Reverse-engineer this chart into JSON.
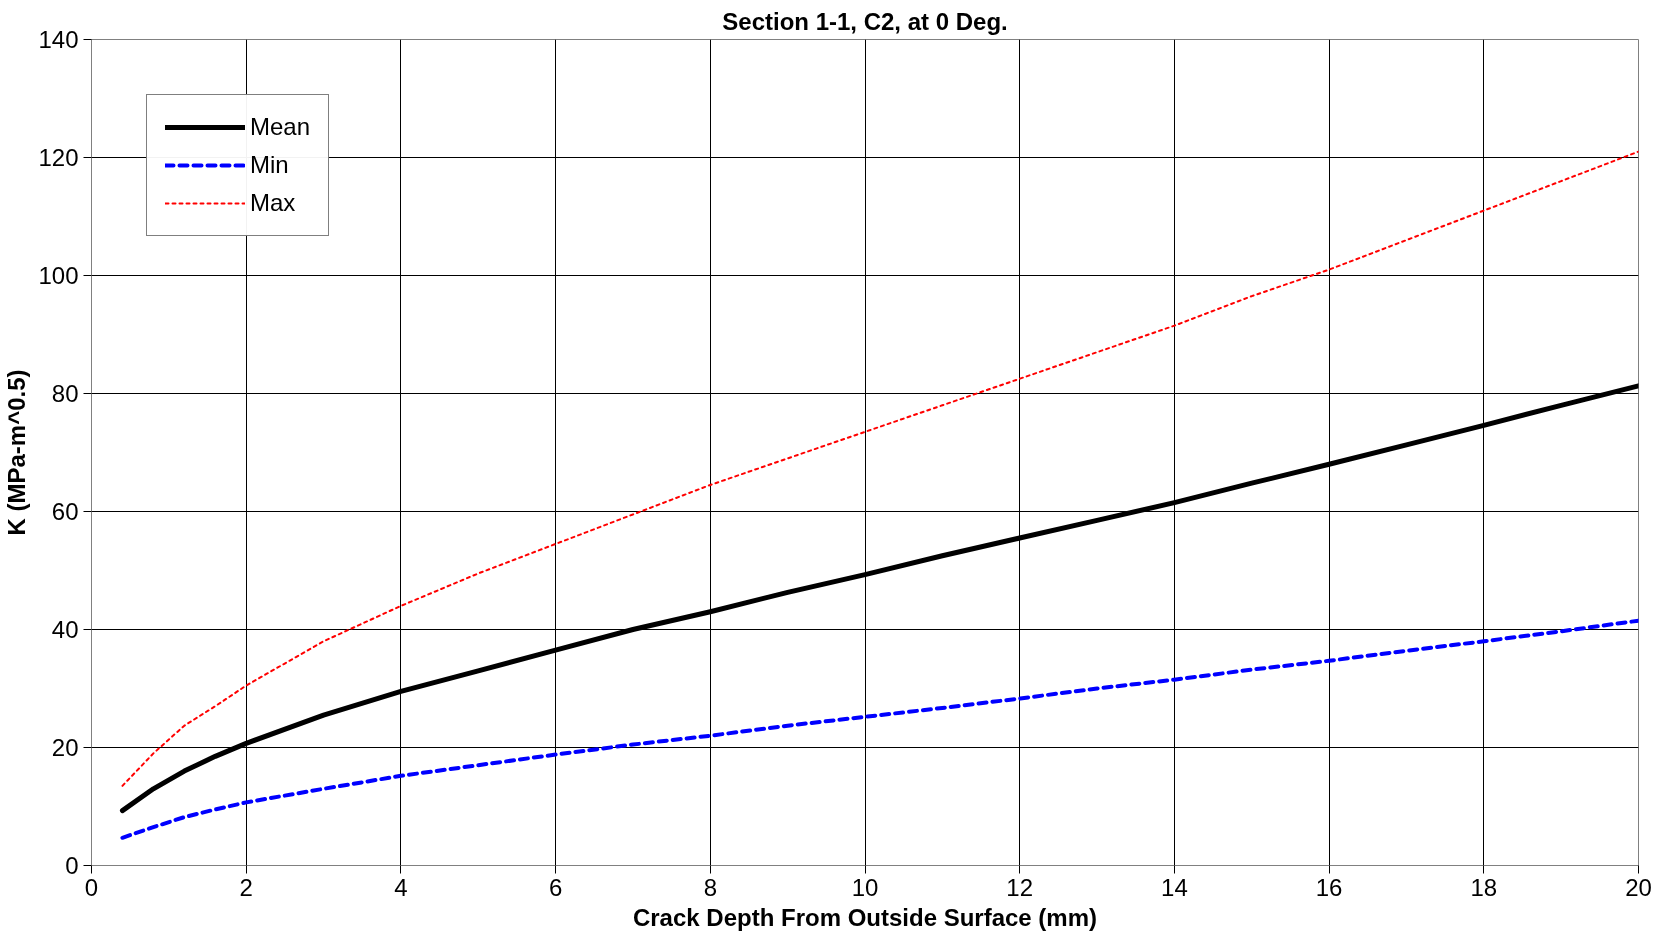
{
  "chart_data": {
    "type": "line",
    "title": "Section 1-1, C2, at 0 Deg.",
    "xlabel": "Crack Depth From Outside Surface (mm)",
    "ylabel": "K (MPa-m^0.5)",
    "x": [
      0.4,
      0.8,
      1.2,
      1.6,
      2,
      3,
      4,
      5,
      6,
      7,
      8,
      9,
      10,
      11,
      12,
      13,
      14,
      15,
      16,
      17,
      18,
      19,
      20
    ],
    "series": [
      {
        "name": "Mean",
        "color": "#000000",
        "line_style": "solid",
        "values": [
          9.3,
          13,
          16,
          18.5,
          20.7,
          25.5,
          29.5,
          33,
          36.5,
          40,
          43,
          46.3,
          49.3,
          52.5,
          55.5,
          58.5,
          61.5,
          64.8,
          68,
          71.3,
          74.6,
          78,
          81.3
        ]
      },
      {
        "name": "Min",
        "color": "#0000ff",
        "line_style": "dashed",
        "values": [
          4.7,
          6.5,
          8.2,
          9.5,
          10.7,
          13,
          15.2,
          17,
          18.8,
          20.5,
          22,
          23.7,
          25.2,
          26.7,
          28.3,
          30,
          31.5,
          33.2,
          34.7,
          36.4,
          38,
          39.7,
          41.5
        ]
      },
      {
        "name": "Max",
        "color": "#ff0000",
        "line_style": "dotted",
        "values": [
          13.5,
          19,
          23.7,
          27,
          30.5,
          38,
          44,
          49.5,
          54.5,
          59.5,
          64.5,
          69,
          73.5,
          78,
          82.5,
          87,
          91.5,
          96.5,
          101,
          106,
          111,
          116,
          121
        ]
      }
    ],
    "xlim": [
      0,
      20
    ],
    "xticks": [
      0,
      2,
      4,
      6,
      8,
      10,
      12,
      14,
      16,
      18,
      20
    ],
    "ylim": [
      0,
      140
    ],
    "yticks": [
      0,
      20,
      40,
      60,
      80,
      100,
      120,
      140
    ],
    "grid": true,
    "legend": "top left",
    "marker": "none"
  }
}
